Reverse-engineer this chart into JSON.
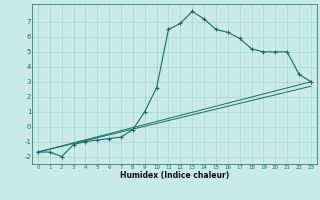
{
  "xlabel": "Humidex (Indice chaleur)",
  "ylabel": "",
  "bg_color": "#c8eae8",
  "grid_color": "#a8d4d2",
  "line_color": "#1a6b65",
  "xlim": [
    -0.5,
    23.5
  ],
  "ylim": [
    -2.5,
    8.2
  ],
  "xticks": [
    0,
    1,
    2,
    3,
    4,
    5,
    6,
    7,
    8,
    9,
    10,
    11,
    12,
    13,
    14,
    15,
    16,
    17,
    18,
    19,
    20,
    21,
    22,
    23
  ],
  "yticks": [
    -2,
    -1,
    0,
    1,
    2,
    3,
    4,
    5,
    6,
    7
  ],
  "curve_x": [
    0,
    1,
    2,
    3,
    4,
    5,
    6,
    7,
    8,
    9,
    10,
    11,
    12,
    13,
    14,
    15,
    16,
    17,
    18,
    19,
    20,
    21,
    22,
    23
  ],
  "curve_y": [
    -1.7,
    -1.7,
    -2.0,
    -1.2,
    -1.0,
    -0.9,
    -0.8,
    -0.7,
    -0.2,
    1.0,
    2.6,
    6.5,
    6.9,
    7.7,
    7.2,
    6.5,
    6.3,
    5.9,
    5.2,
    5.0,
    5.0,
    5.0,
    3.5,
    3.0
  ],
  "line2_x": [
    0,
    23
  ],
  "line2_y": [
    -1.7,
    3.0
  ],
  "line3_x": [
    0,
    23
  ],
  "line3_y": [
    -1.7,
    2.7
  ]
}
